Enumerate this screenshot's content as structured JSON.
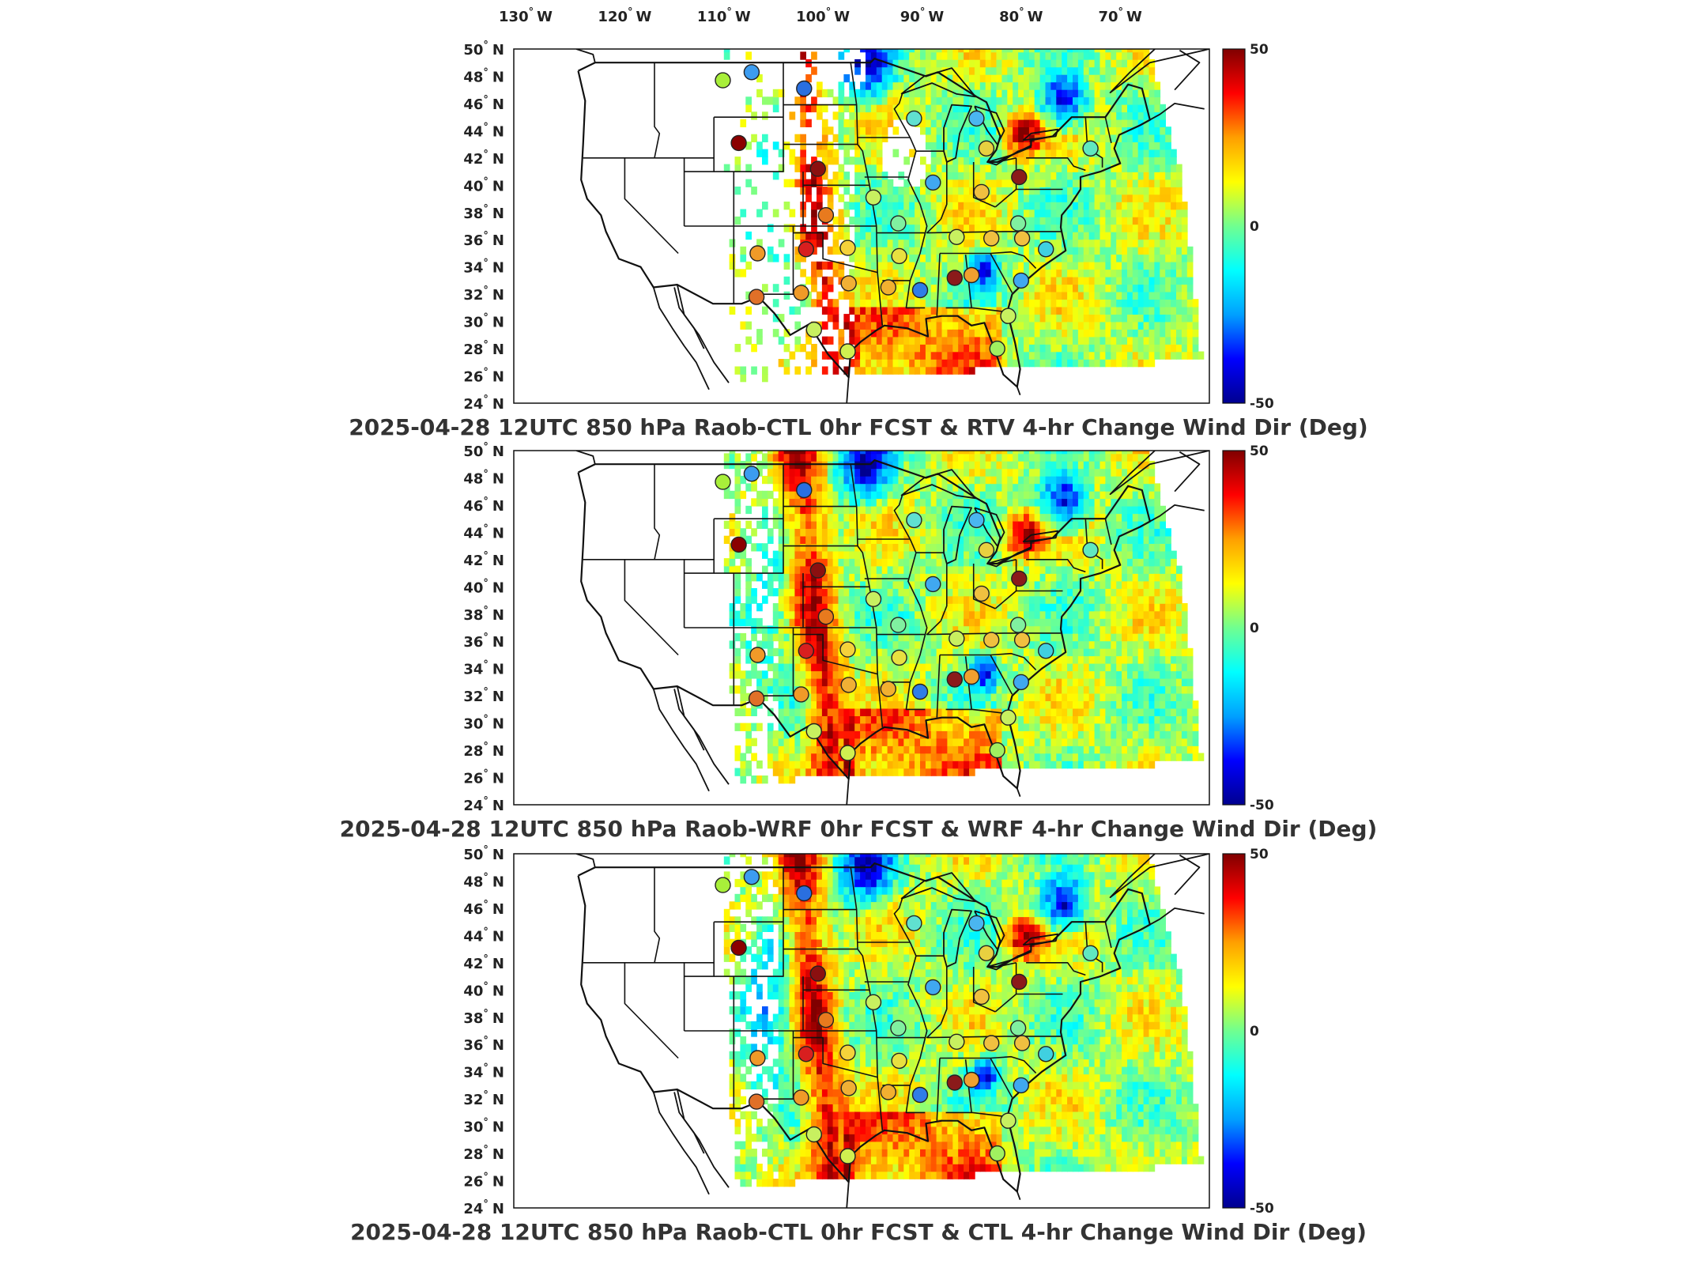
{
  "lon_labels": [
    "130",
    "120",
    "110",
    "100",
    "90",
    "80",
    "70"
  ],
  "lon_hemisphere": "W",
  "lat_labels": [
    "50",
    "48",
    "46",
    "44",
    "42",
    "40",
    "38",
    "36",
    "34",
    "32",
    "30",
    "28",
    "26",
    "24"
  ],
  "lat_hemisphere": "N",
  "degree_symbol": "°",
  "colorbar": {
    "max_label": "50",
    "mid_label": "0",
    "min_label": "-50",
    "stops": [
      "#00008f",
      "#0000ff",
      "#00a0ff",
      "#00ffff",
      "#70ff90",
      "#ffff00",
      "#ff9f00",
      "#ff0000",
      "#800000"
    ]
  },
  "panels": [
    {
      "title": "2025-04-28 12UTC 850 hPa Raob-CTL 0hr FCST & RTV 4-hr Change Wind Dir (Deg)",
      "coverage": "sparse"
    },
    {
      "title": "2025-04-28 12UTC 850 hPa Raob-WRF 0hr FCST & WRF 4-hr Change Wind Dir (Deg)",
      "coverage": "full"
    },
    {
      "title": "2025-04-28 12UTC 850 hPa Raob-CTL 0hr FCST & CTL 4-hr Change Wind Dir (Deg)",
      "coverage": "full"
    }
  ],
  "raob_stations": [
    {
      "lon": -110.1,
      "lat": 47.7,
      "color": "#a8ef3a"
    },
    {
      "lon": -107.2,
      "lat": 48.3,
      "color": "#3c9cf0"
    },
    {
      "lon": -101.9,
      "lat": 47.1,
      "color": "#2a6fe0"
    },
    {
      "lon": -108.5,
      "lat": 43.1,
      "color": "#8b0000"
    },
    {
      "lon": -100.5,
      "lat": 41.2,
      "color": "#8b1010"
    },
    {
      "lon": -99.7,
      "lat": 37.8,
      "color": "#e87a1e"
    },
    {
      "lon": -101.7,
      "lat": 35.3,
      "color": "#d81f1f"
    },
    {
      "lon": -106.6,
      "lat": 35.0,
      "color": "#f09a28"
    },
    {
      "lon": -102.2,
      "lat": 32.1,
      "color": "#f09a28"
    },
    {
      "lon": -106.7,
      "lat": 31.8,
      "color": "#e07028"
    },
    {
      "lon": -97.5,
      "lat": 35.4,
      "color": "#f5d23a"
    },
    {
      "lon": -97.4,
      "lat": 32.8,
      "color": "#f0b035"
    },
    {
      "lon": -94.9,
      "lat": 39.1,
      "color": "#c8f060"
    },
    {
      "lon": -92.4,
      "lat": 37.2,
      "color": "#80f0a0"
    },
    {
      "lon": -92.3,
      "lat": 34.8,
      "color": "#e8e040"
    },
    {
      "lon": -93.4,
      "lat": 32.5,
      "color": "#f2b030"
    },
    {
      "lon": -90.2,
      "lat": 32.3,
      "color": "#2f7de8"
    },
    {
      "lon": -86.7,
      "lat": 33.2,
      "color": "#8b1a1a"
    },
    {
      "lon": -85.0,
      "lat": 33.4,
      "color": "#f0a030"
    },
    {
      "lon": -86.5,
      "lat": 36.2,
      "color": "#c8f060"
    },
    {
      "lon": -83.0,
      "lat": 36.1,
      "color": "#f0c040"
    },
    {
      "lon": -88.9,
      "lat": 40.2,
      "color": "#40a8f0"
    },
    {
      "lon": -90.8,
      "lat": 44.9,
      "color": "#60e0d0"
    },
    {
      "lon": -84.5,
      "lat": 44.9,
      "color": "#4ab6f0"
    },
    {
      "lon": -83.5,
      "lat": 42.7,
      "color": "#e8d040"
    },
    {
      "lon": -84.0,
      "lat": 39.5,
      "color": "#f0c040"
    },
    {
      "lon": -80.2,
      "lat": 40.6,
      "color": "#8b1a1a"
    },
    {
      "lon": -80.3,
      "lat": 37.2,
      "color": "#80f0a0"
    },
    {
      "lon": -79.9,
      "lat": 36.1,
      "color": "#f0c040"
    },
    {
      "lon": -77.5,
      "lat": 35.3,
      "color": "#40d0e0"
    },
    {
      "lon": -80.0,
      "lat": 33.0,
      "color": "#40a8f0"
    },
    {
      "lon": -81.3,
      "lat": 30.4,
      "color": "#c8f060"
    },
    {
      "lon": -82.4,
      "lat": 28.0,
      "color": "#a0f060"
    },
    {
      "lon": -97.5,
      "lat": 27.8,
      "color": "#d0f050"
    },
    {
      "lon": -100.9,
      "lat": 29.4,
      "color": "#c8f060"
    },
    {
      "lon": -73.0,
      "lat": 42.7,
      "color": "#60e8c0"
    }
  ]
}
